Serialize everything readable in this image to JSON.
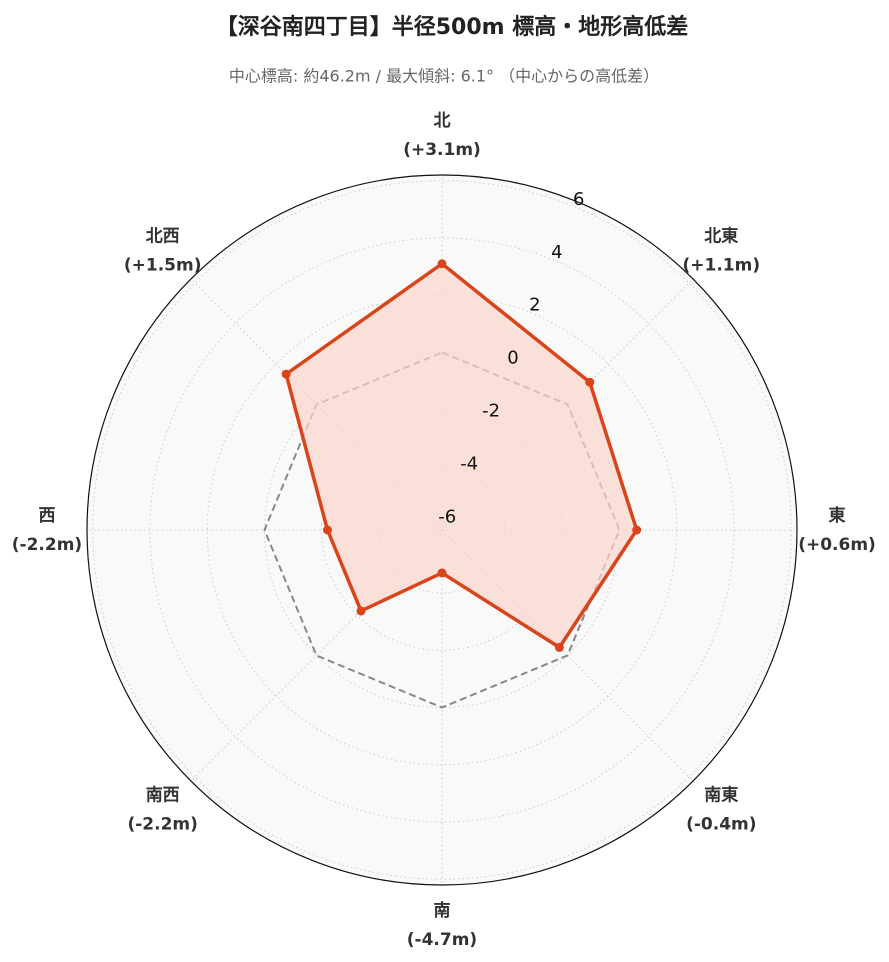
{
  "chart_data": {
    "type": "radar",
    "title": "【深谷南四丁目】半径500m 標高・地形高低差",
    "subtitle": "中心標高: 約46.2m / 最大傾斜: 6.1° （中心からの高低差）",
    "categories": [
      "北",
      "北東",
      "東",
      "南東",
      "南",
      "南西",
      "西",
      "北西"
    ],
    "series": [
      {
        "color": "#d9441a",
        "fill": "#fbd5cb",
        "values": [
          3.1,
          1.1,
          0.6,
          -0.4,
          -4.7,
          -2.2,
          -2.2,
          1.5
        ],
        "value_labels": [
          "(+3.1m)",
          "(+1.1m)",
          "(+0.6m)",
          "(-0.4m)",
          "(-4.7m)",
          "(-2.2m)",
          "(-2.2m)",
          "(+1.5m)"
        ]
      }
    ],
    "reference_line": 0,
    "ylim": [
      -6.2,
      6.2
    ],
    "yticks": [
      -6,
      -4,
      -2,
      0,
      2,
      4,
      6
    ],
    "grid": true
  }
}
